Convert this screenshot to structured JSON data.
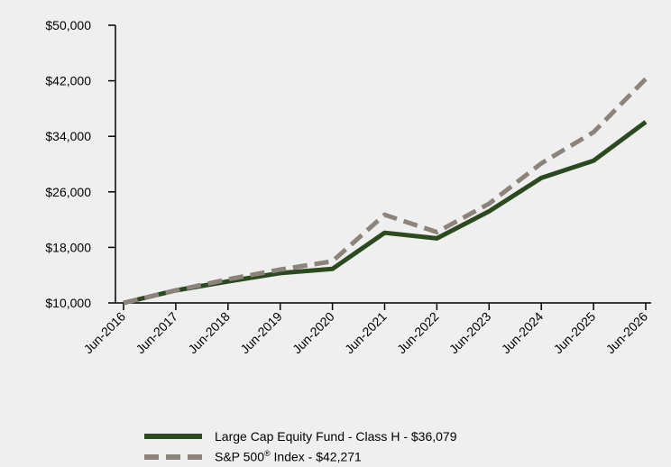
{
  "chart_data": {
    "type": "line",
    "x": [
      "Jun-2016",
      "Jun-2017",
      "Jun-2018",
      "Jun-2019",
      "Jun-2020",
      "Jun-2021",
      "Jun-2022",
      "Jun-2023",
      "Jun-2024",
      "Jun-2025",
      "Jun-2026"
    ],
    "ylim": [
      10000,
      50000
    ],
    "yticks": [
      10000,
      18000,
      26000,
      34000,
      42000,
      50000
    ],
    "ytick_labels": [
      "$10,000",
      "$18,000",
      "$26,000",
      "$34,000",
      "$42,000",
      "$50,000"
    ],
    "series": [
      {
        "name": "Large Cap Equity Fund - Class H - $36,079",
        "color": "#2b4a1f",
        "style": "solid",
        "values": [
          10000,
          11800,
          13100,
          14300,
          14900,
          20100,
          19300,
          23200,
          28000,
          30500,
          36079
        ]
      },
      {
        "name": "S&P 500",
        "name_suffix": " Index - $42,271",
        "name_superscript": "®",
        "color": "#8c847a",
        "style": "dashed",
        "values": [
          10000,
          11800,
          13400,
          14800,
          16000,
          22700,
          20200,
          24300,
          30100,
          34600,
          42271
        ]
      }
    ],
    "legend_position": "bottom-left",
    "grid": false
  }
}
